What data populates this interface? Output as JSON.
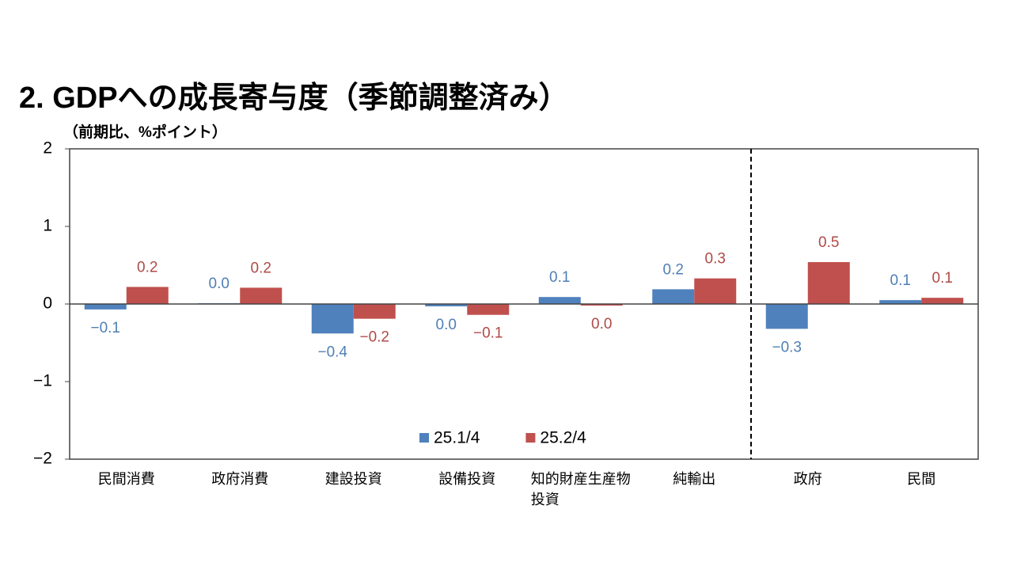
{
  "chart_data": {
    "type": "bar",
    "title": "2. GDPへの成長寄与度（季節調整済み）",
    "y_label": "（前期比、%ポイント）",
    "categories": [
      "民間消費",
      "政府消費",
      "建設投資",
      "設備投資",
      "知的財産生産物\n投資",
      "純輸出",
      "政府",
      "民間"
    ],
    "series": [
      {
        "name": "25.1/4",
        "color": "#4f81bd",
        "values": [
          -0.07,
          0.01,
          -0.38,
          -0.03,
          0.09,
          0.19,
          -0.32,
          0.05
        ],
        "value_labels": [
          "−0.1",
          "0.0",
          "−0.4",
          "0.0",
          "0.1",
          "0.2",
          "−0.3",
          "0.1"
        ],
        "label_color": "#4f7fb5"
      },
      {
        "name": "25.2/4",
        "color": "#c0504d",
        "values": [
          0.22,
          0.21,
          -0.19,
          -0.14,
          -0.02,
          0.33,
          0.54,
          0.08
        ],
        "value_labels": [
          "0.2",
          "0.2",
          "−0.2",
          "−0.1",
          "0.0",
          "0.3",
          "0.5",
          "0.1"
        ],
        "label_color": "#b04a47"
      }
    ],
    "ylim": [
      -2,
      2
    ],
    "yticks": [
      {
        "value": -2,
        "label": "−2"
      },
      {
        "value": -1,
        "label": "−1"
      },
      0,
      1,
      2
    ],
    "grid": false
  }
}
